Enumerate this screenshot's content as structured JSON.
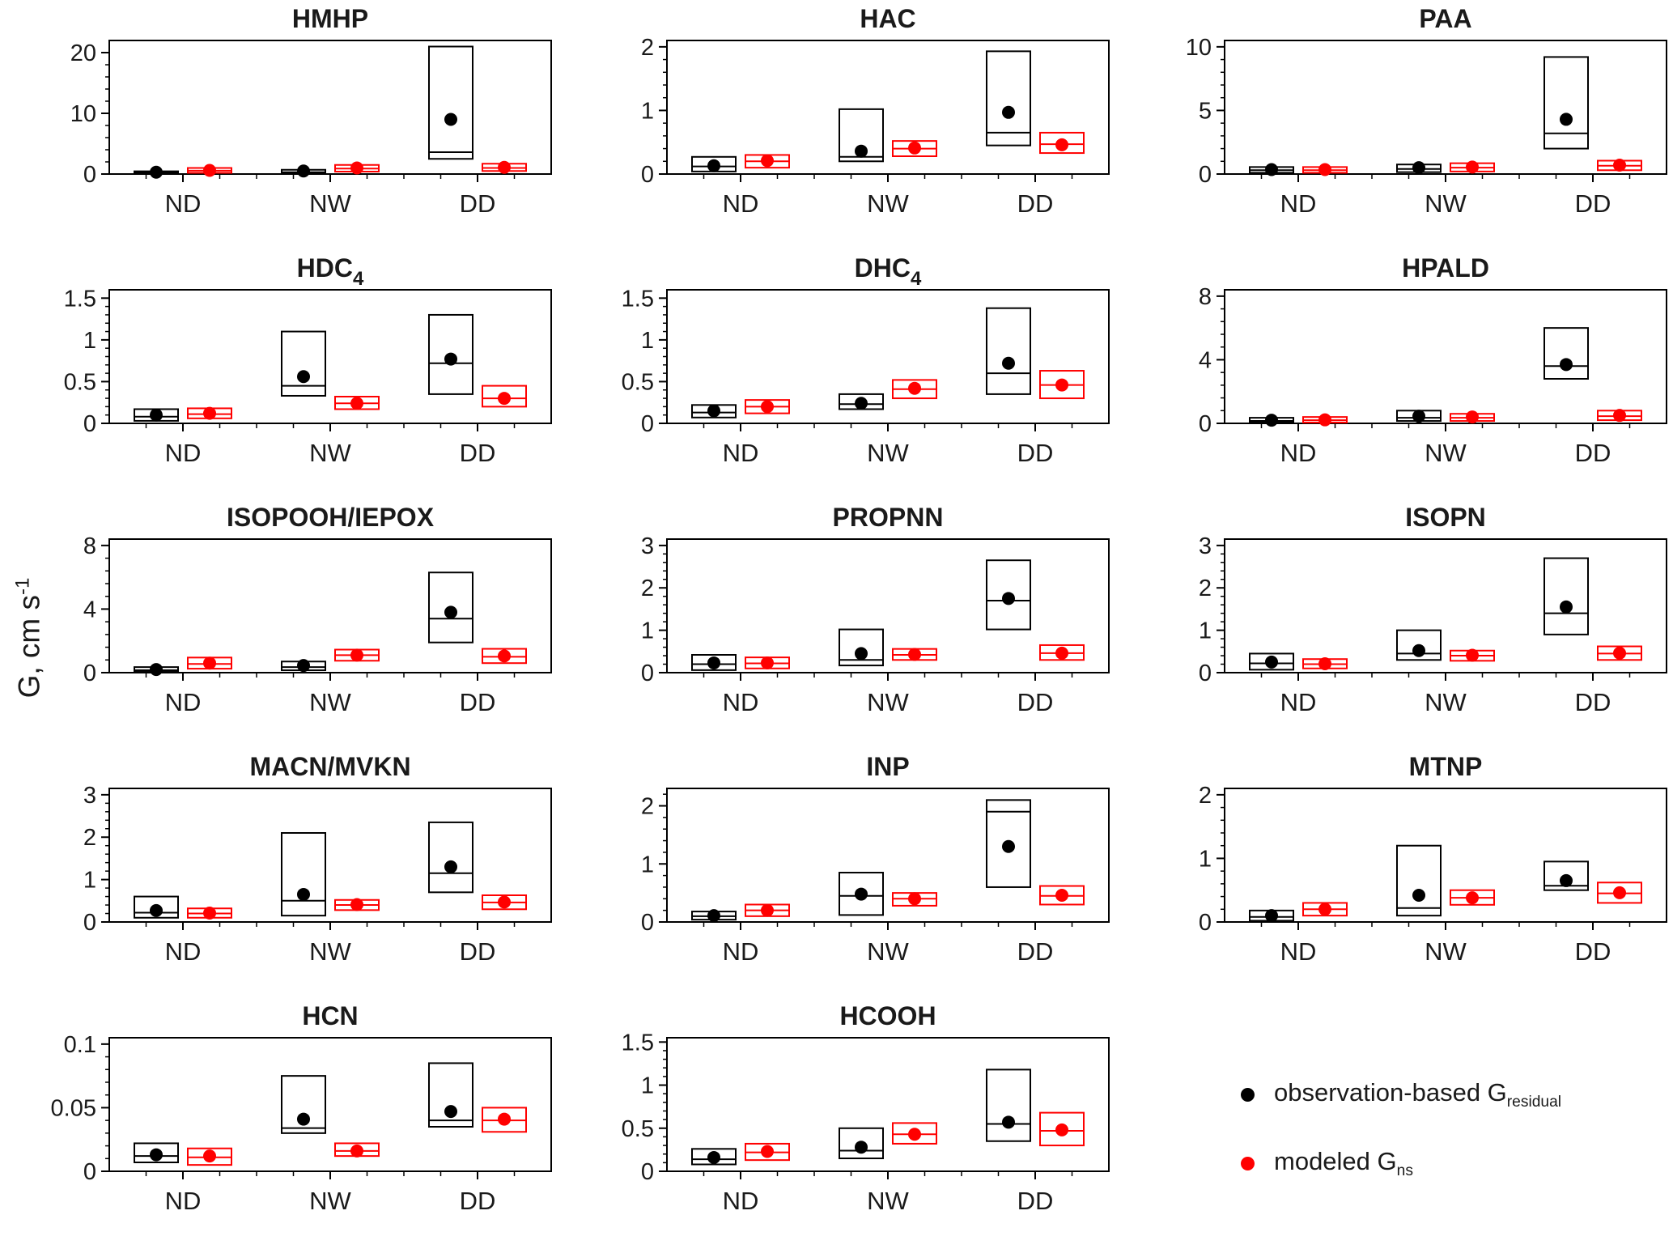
{
  "figure": {
    "ylabel": {
      "main": "G, cm s",
      "sup": "-1"
    },
    "colors": {
      "observation": "#000000",
      "model": "#ff0000",
      "axis": "#000000",
      "text": "#1a1a1a"
    },
    "legend": {
      "entries": [
        {
          "marker_color": "#000000",
          "main": "observation-based G",
          "sub": "residual"
        },
        {
          "marker_color": "#ff0000",
          "main": "modeled G",
          "sub": "ns"
        }
      ]
    }
  },
  "chart_data": {
    "type": "box",
    "categories": [
      "ND",
      "NW",
      "DD"
    ],
    "series_names": [
      "observation-based G_residual",
      "modeled G_ns"
    ],
    "ylabel": "G, cm s^-1",
    "panels": [
      {
        "title": "HMHP",
        "title_sub": "",
        "ymax": 22,
        "yticks": [
          0,
          10,
          20
        ],
        "ytick_labels": [
          "0",
          "10",
          "20"
        ],
        "groups": [
          {
            "cat": "ND",
            "obs": {
              "lo": 0.05,
              "med": 0.2,
              "hi": 0.45,
              "dot": 0.3
            },
            "mod": {
              "lo": 0.2,
              "med": 0.55,
              "hi": 1.0,
              "dot": 0.6
            }
          },
          {
            "cat": "NW",
            "obs": {
              "lo": 0.1,
              "med": 0.3,
              "hi": 0.7,
              "dot": 0.5
            },
            "mod": {
              "lo": 0.4,
              "med": 0.9,
              "hi": 1.5,
              "dot": 1.0
            }
          },
          {
            "cat": "DD",
            "obs": {
              "lo": 2.5,
              "med": 3.6,
              "hi": 21.0,
              "dot": 9.0
            },
            "mod": {
              "lo": 0.5,
              "med": 1.0,
              "hi": 1.7,
              "dot": 1.1
            }
          }
        ]
      },
      {
        "title": "HAC",
        "title_sub": "",
        "ymax": 2.1,
        "yticks": [
          0,
          1,
          2
        ],
        "ytick_labels": [
          "0",
          "1",
          "2"
        ],
        "groups": [
          {
            "cat": "ND",
            "obs": {
              "lo": 0.04,
              "med": 0.12,
              "hi": 0.27,
              "dot": 0.13
            },
            "mod": {
              "lo": 0.1,
              "med": 0.2,
              "hi": 0.3,
              "dot": 0.21
            }
          },
          {
            "cat": "NW",
            "obs": {
              "lo": 0.2,
              "med": 0.27,
              "hi": 1.02,
              "dot": 0.36
            },
            "mod": {
              "lo": 0.28,
              "med": 0.4,
              "hi": 0.52,
              "dot": 0.41
            }
          },
          {
            "cat": "DD",
            "obs": {
              "lo": 0.45,
              "med": 0.65,
              "hi": 1.93,
              "dot": 0.97
            },
            "mod": {
              "lo": 0.33,
              "med": 0.47,
              "hi": 0.65,
              "dot": 0.46
            }
          }
        ]
      },
      {
        "title": "PAA",
        "title_sub": "",
        "ymax": 10.5,
        "yticks": [
          0,
          5,
          10
        ],
        "ytick_labels": [
          "0",
          "5",
          "10"
        ],
        "groups": [
          {
            "cat": "ND",
            "obs": {
              "lo": 0.1,
              "med": 0.3,
              "hi": 0.55,
              "dot": 0.35
            },
            "mod": {
              "lo": 0.1,
              "med": 0.3,
              "hi": 0.55,
              "dot": 0.35
            }
          },
          {
            "cat": "NW",
            "obs": {
              "lo": 0.15,
              "med": 0.4,
              "hi": 0.75,
              "dot": 0.5
            },
            "mod": {
              "lo": 0.2,
              "med": 0.5,
              "hi": 0.85,
              "dot": 0.55
            }
          },
          {
            "cat": "DD",
            "obs": {
              "lo": 2.0,
              "med": 3.2,
              "hi": 9.2,
              "dot": 4.3
            },
            "mod": {
              "lo": 0.3,
              "med": 0.65,
              "hi": 1.05,
              "dot": 0.7
            }
          }
        ]
      },
      {
        "title": "HDC",
        "title_sub": "4",
        "ymax": 1.6,
        "yticks": [
          0,
          0.5,
          1,
          1.5
        ],
        "ytick_labels": [
          "0",
          "0.5",
          "1",
          "1.5"
        ],
        "groups": [
          {
            "cat": "ND",
            "obs": {
              "lo": 0.03,
              "med": 0.08,
              "hi": 0.17,
              "dot": 0.1
            },
            "mod": {
              "lo": 0.06,
              "med": 0.11,
              "hi": 0.18,
              "dot": 0.12
            }
          },
          {
            "cat": "NW",
            "obs": {
              "lo": 0.33,
              "med": 0.45,
              "hi": 1.1,
              "dot": 0.56
            },
            "mod": {
              "lo": 0.17,
              "med": 0.24,
              "hi": 0.32,
              "dot": 0.24
            }
          },
          {
            "cat": "DD",
            "obs": {
              "lo": 0.35,
              "med": 0.72,
              "hi": 1.3,
              "dot": 0.77
            },
            "mod": {
              "lo": 0.2,
              "med": 0.3,
              "hi": 0.45,
              "dot": 0.3
            }
          }
        ]
      },
      {
        "title": "DHC",
        "title_sub": "4",
        "ymax": 1.6,
        "yticks": [
          0,
          0.5,
          1,
          1.5
        ],
        "ytick_labels": [
          "0",
          "0.5",
          "1",
          "1.5"
        ],
        "groups": [
          {
            "cat": "ND",
            "obs": {
              "lo": 0.07,
              "med": 0.13,
              "hi": 0.22,
              "dot": 0.15
            },
            "mod": {
              "lo": 0.12,
              "med": 0.2,
              "hi": 0.28,
              "dot": 0.2
            }
          },
          {
            "cat": "NW",
            "obs": {
              "lo": 0.17,
              "med": 0.23,
              "hi": 0.35,
              "dot": 0.24
            },
            "mod": {
              "lo": 0.3,
              "med": 0.41,
              "hi": 0.52,
              "dot": 0.42
            }
          },
          {
            "cat": "DD",
            "obs": {
              "lo": 0.35,
              "med": 0.6,
              "hi": 1.38,
              "dot": 0.72
            },
            "mod": {
              "lo": 0.3,
              "med": 0.46,
              "hi": 0.63,
              "dot": 0.46
            }
          }
        ]
      },
      {
        "title": "HPALD",
        "title_sub": "",
        "ymax": 8.4,
        "yticks": [
          0,
          4,
          8
        ],
        "ytick_labels": [
          "0",
          "4",
          "8"
        ],
        "groups": [
          {
            "cat": "ND",
            "obs": {
              "lo": 0.05,
              "med": 0.15,
              "hi": 0.35,
              "dot": 0.2
            },
            "mod": {
              "lo": 0.05,
              "med": 0.2,
              "hi": 0.4,
              "dot": 0.22
            }
          },
          {
            "cat": "NW",
            "obs": {
              "lo": 0.15,
              "med": 0.35,
              "hi": 0.8,
              "dot": 0.45
            },
            "mod": {
              "lo": 0.15,
              "med": 0.35,
              "hi": 0.6,
              "dot": 0.4
            }
          },
          {
            "cat": "DD",
            "obs": {
              "lo": 2.8,
              "med": 3.6,
              "hi": 6.0,
              "dot": 3.7
            },
            "mod": {
              "lo": 0.2,
              "med": 0.45,
              "hi": 0.8,
              "dot": 0.5
            }
          }
        ]
      },
      {
        "title": "ISOPOOH/IEPOX",
        "title_sub": "",
        "ymax": 8.4,
        "yticks": [
          0,
          4,
          8
        ],
        "ytick_labels": [
          "0",
          "4",
          "8"
        ],
        "groups": [
          {
            "cat": "ND",
            "obs": {
              "lo": 0.05,
              "med": 0.15,
              "hi": 0.35,
              "dot": 0.2
            },
            "mod": {
              "lo": 0.25,
              "med": 0.55,
              "hi": 0.95,
              "dot": 0.6
            }
          },
          {
            "cat": "NW",
            "obs": {
              "lo": 0.15,
              "med": 0.35,
              "hi": 0.7,
              "dot": 0.45
            },
            "mod": {
              "lo": 0.75,
              "med": 1.1,
              "hi": 1.45,
              "dot": 1.1
            }
          },
          {
            "cat": "DD",
            "obs": {
              "lo": 1.9,
              "med": 3.4,
              "hi": 6.3,
              "dot": 3.8
            },
            "mod": {
              "lo": 0.6,
              "med": 1.0,
              "hi": 1.5,
              "dot": 1.05
            }
          }
        ]
      },
      {
        "title": "PROPNN",
        "title_sub": "",
        "ymax": 3.15,
        "yticks": [
          0,
          1,
          2,
          3
        ],
        "ytick_labels": [
          "0",
          "1",
          "2",
          "3"
        ],
        "groups": [
          {
            "cat": "ND",
            "obs": {
              "lo": 0.06,
              "med": 0.2,
              "hi": 0.42,
              "dot": 0.23
            },
            "mod": {
              "lo": 0.1,
              "med": 0.22,
              "hi": 0.36,
              "dot": 0.23
            }
          },
          {
            "cat": "NW",
            "obs": {
              "lo": 0.17,
              "med": 0.3,
              "hi": 1.02,
              "dot": 0.45
            },
            "mod": {
              "lo": 0.3,
              "med": 0.42,
              "hi": 0.56,
              "dot": 0.43
            }
          },
          {
            "cat": "DD",
            "obs": {
              "lo": 1.02,
              "med": 1.7,
              "hi": 2.65,
              "dot": 1.75
            },
            "mod": {
              "lo": 0.3,
              "med": 0.46,
              "hi": 0.65,
              "dot": 0.46
            }
          }
        ]
      },
      {
        "title": "ISOPN",
        "title_sub": "",
        "ymax": 3.15,
        "yticks": [
          0,
          1,
          2,
          3
        ],
        "ytick_labels": [
          "0",
          "1",
          "2",
          "3"
        ],
        "groups": [
          {
            "cat": "ND",
            "obs": {
              "lo": 0.07,
              "med": 0.22,
              "hi": 0.45,
              "dot": 0.25
            },
            "mod": {
              "lo": 0.1,
              "med": 0.2,
              "hi": 0.32,
              "dot": 0.21
            }
          },
          {
            "cat": "NW",
            "obs": {
              "lo": 0.3,
              "med": 0.45,
              "hi": 1.0,
              "dot": 0.52
            },
            "mod": {
              "lo": 0.28,
              "med": 0.4,
              "hi": 0.52,
              "dot": 0.41
            }
          },
          {
            "cat": "DD",
            "obs": {
              "lo": 0.9,
              "med": 1.4,
              "hi": 2.7,
              "dot": 1.55
            },
            "mod": {
              "lo": 0.3,
              "med": 0.45,
              "hi": 0.62,
              "dot": 0.46
            }
          }
        ]
      },
      {
        "title": "MACN/MVKN",
        "title_sub": "",
        "ymax": 3.15,
        "yticks": [
          0,
          1,
          2,
          3
        ],
        "ytick_labels": [
          "0",
          "1",
          "2",
          "3"
        ],
        "groups": [
          {
            "cat": "ND",
            "obs": {
              "lo": 0.1,
              "med": 0.22,
              "hi": 0.6,
              "dot": 0.27
            },
            "mod": {
              "lo": 0.1,
              "med": 0.2,
              "hi": 0.32,
              "dot": 0.21
            }
          },
          {
            "cat": "NW",
            "obs": {
              "lo": 0.15,
              "med": 0.5,
              "hi": 2.1,
              "dot": 0.65
            },
            "mod": {
              "lo": 0.28,
              "med": 0.4,
              "hi": 0.52,
              "dot": 0.41
            }
          },
          {
            "cat": "DD",
            "obs": {
              "lo": 0.7,
              "med": 1.15,
              "hi": 2.35,
              "dot": 1.3
            },
            "mod": {
              "lo": 0.3,
              "med": 0.46,
              "hi": 0.63,
              "dot": 0.47
            }
          }
        ]
      },
      {
        "title": "INP",
        "title_sub": "",
        "ymax": 2.3,
        "yticks": [
          0,
          1,
          2
        ],
        "ytick_labels": [
          "0",
          "1",
          "2"
        ],
        "groups": [
          {
            "cat": "ND",
            "obs": {
              "lo": 0.04,
              "med": 0.1,
              "hi": 0.18,
              "dot": 0.11
            },
            "mod": {
              "lo": 0.1,
              "med": 0.2,
              "hi": 0.3,
              "dot": 0.2
            }
          },
          {
            "cat": "NW",
            "obs": {
              "lo": 0.12,
              "med": 0.45,
              "hi": 0.85,
              "dot": 0.48
            },
            "mod": {
              "lo": 0.28,
              "med": 0.4,
              "hi": 0.5,
              "dot": 0.4
            }
          },
          {
            "cat": "DD",
            "obs": {
              "lo": 0.6,
              "med": 1.9,
              "hi": 2.1,
              "dot": 1.3
            },
            "mod": {
              "lo": 0.3,
              "med": 0.45,
              "hi": 0.62,
              "dot": 0.46
            }
          }
        ]
      },
      {
        "title": "MTNP",
        "title_sub": "",
        "ymax": 2.1,
        "yticks": [
          0,
          1,
          2
        ],
        "ytick_labels": [
          "0",
          "1",
          "2"
        ],
        "groups": [
          {
            "cat": "ND",
            "obs": {
              "lo": 0.02,
              "med": 0.08,
              "hi": 0.18,
              "dot": 0.1
            },
            "mod": {
              "lo": 0.1,
              "med": 0.2,
              "hi": 0.3,
              "dot": 0.2
            }
          },
          {
            "cat": "NW",
            "obs": {
              "lo": 0.1,
              "med": 0.22,
              "hi": 1.2,
              "dot": 0.42
            },
            "mod": {
              "lo": 0.27,
              "med": 0.38,
              "hi": 0.5,
              "dot": 0.38
            }
          },
          {
            "cat": "DD",
            "obs": {
              "lo": 0.5,
              "med": 0.57,
              "hi": 0.95,
              "dot": 0.65
            },
            "mod": {
              "lo": 0.3,
              "med": 0.45,
              "hi": 0.62,
              "dot": 0.46
            }
          }
        ]
      },
      {
        "title": "HCN",
        "title_sub": "",
        "ymax": 0.105,
        "yticks": [
          0,
          0.05,
          0.1
        ],
        "ytick_labels": [
          "0",
          "0.05",
          "0.1"
        ],
        "groups": [
          {
            "cat": "ND",
            "obs": {
              "lo": 0.007,
              "med": 0.012,
              "hi": 0.022,
              "dot": 0.013
            },
            "mod": {
              "lo": 0.005,
              "med": 0.011,
              "hi": 0.018,
              "dot": 0.012
            }
          },
          {
            "cat": "NW",
            "obs": {
              "lo": 0.03,
              "med": 0.034,
              "hi": 0.075,
              "dot": 0.041
            },
            "mod": {
              "lo": 0.012,
              "med": 0.016,
              "hi": 0.022,
              "dot": 0.016
            }
          },
          {
            "cat": "DD",
            "obs": {
              "lo": 0.035,
              "med": 0.04,
              "hi": 0.085,
              "dot": 0.047
            },
            "mod": {
              "lo": 0.031,
              "med": 0.04,
              "hi": 0.05,
              "dot": 0.041
            }
          }
        ]
      },
      {
        "title": "HCOOH",
        "title_sub": "",
        "ymax": 1.55,
        "yticks": [
          0,
          0.5,
          1,
          1.5
        ],
        "ytick_labels": [
          "0",
          "0.5",
          "1",
          "1.5"
        ],
        "groups": [
          {
            "cat": "ND",
            "obs": {
              "lo": 0.08,
              "med": 0.14,
              "hi": 0.26,
              "dot": 0.16
            },
            "mod": {
              "lo": 0.13,
              "med": 0.22,
              "hi": 0.32,
              "dot": 0.23
            }
          },
          {
            "cat": "NW",
            "obs": {
              "lo": 0.15,
              "med": 0.24,
              "hi": 0.5,
              "dot": 0.28
            },
            "mod": {
              "lo": 0.32,
              "med": 0.43,
              "hi": 0.56,
              "dot": 0.43
            }
          },
          {
            "cat": "DD",
            "obs": {
              "lo": 0.35,
              "med": 0.55,
              "hi": 1.18,
              "dot": 0.57
            },
            "mod": {
              "lo": 0.3,
              "med": 0.47,
              "hi": 0.68,
              "dot": 0.48
            }
          }
        ]
      }
    ]
  }
}
